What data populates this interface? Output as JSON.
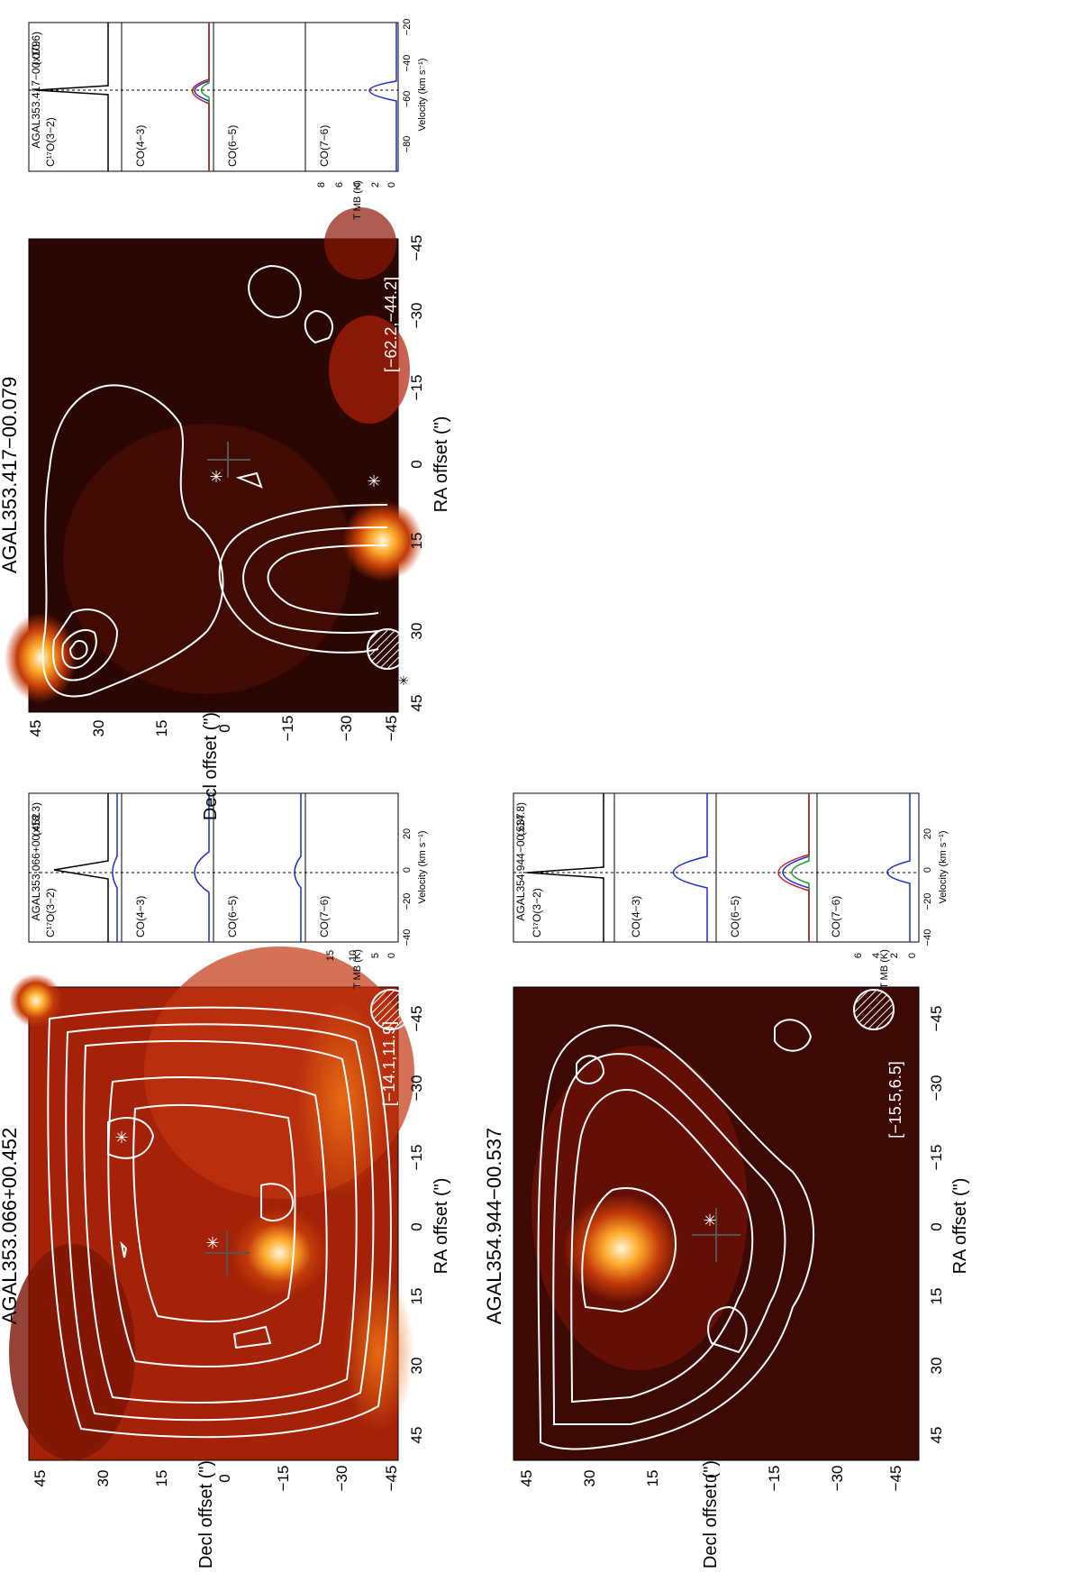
{
  "figure": {
    "axis_labels": {
      "decl": "Decl offset (\")",
      "ra": "RA offset (\")"
    },
    "tick_labels": [
      "45",
      "30",
      "15",
      "0",
      "−15",
      "−30",
      "−45"
    ],
    "spectra_axis_labels": {
      "velocity": "Velocity (km s⁻¹)",
      "tmb": "T MB (K)"
    },
    "line_labels": [
      "C¹⁷O(3−2)",
      "CO(4−3)",
      "CO(6−5)",
      "CO(7−6)"
    ],
    "colors": {
      "contour": "#ffffff",
      "fit_blue": "#1a2ccc",
      "fit_red": "#c0202a",
      "fit_green": "#1f9a2e"
    }
  },
  "panels": [
    {
      "source": "AGAL353.066+00.452",
      "velocity_range": "[−14.1,11.9]",
      "spectrum_source": "AGAL353.066+00.452",
      "spectrum_scale": "(x18.3)",
      "tmb_ticks": [
        "0",
        "5",
        "10",
        "15"
      ],
      "velocity_ticks": [
        "−40",
        "−20",
        "0",
        "20"
      ]
    },
    {
      "source": "AGAL353.417−00.079",
      "velocity_range": "[−62.2,−44.2]",
      "spectrum_source": "AGAL353.417−00.079",
      "spectrum_scale": "(x10.6)",
      "tmb_ticks": [
        "0",
        "2",
        "4",
        "6",
        "8"
      ],
      "velocity_ticks": [
        "−80",
        "−60",
        "−40",
        "−20"
      ]
    },
    {
      "source": "AGAL354.944−00.537",
      "velocity_range": "[−15.5,6.5]",
      "spectrum_source": "AGAL354.944−00.537",
      "spectrum_scale": "(x14.8)",
      "tmb_ticks": [
        "0",
        "2",
        "4",
        "6"
      ],
      "velocity_ticks": [
        "−40",
        "−20",
        "0",
        "20"
      ]
    }
  ]
}
